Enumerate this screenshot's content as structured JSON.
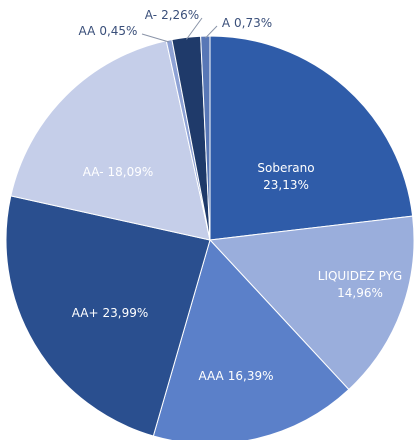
{
  "chart_data": {
    "type": "pie",
    "categories": [
      "Soberano",
      "LIQUIDEZ PYG",
      "AAA",
      "AA+",
      "AA-",
      "AA",
      "A-",
      "A"
    ],
    "values": [
      23.13,
      14.96,
      16.39,
      23.99,
      18.09,
      0.45,
      2.26,
      0.73
    ],
    "value_labels": [
      "23,13%",
      "14,96%",
      "16,39%",
      "23,99%",
      "18,09%",
      "0,45%",
      "2,26%",
      "0,73%"
    ],
    "colors": [
      "#2f5ca9",
      "#9aaedc",
      "#5b80c9",
      "#2a4f8f",
      "#c5cee9",
      "#8ea2d5",
      "#1f3a6a",
      "#5877b6"
    ]
  }
}
